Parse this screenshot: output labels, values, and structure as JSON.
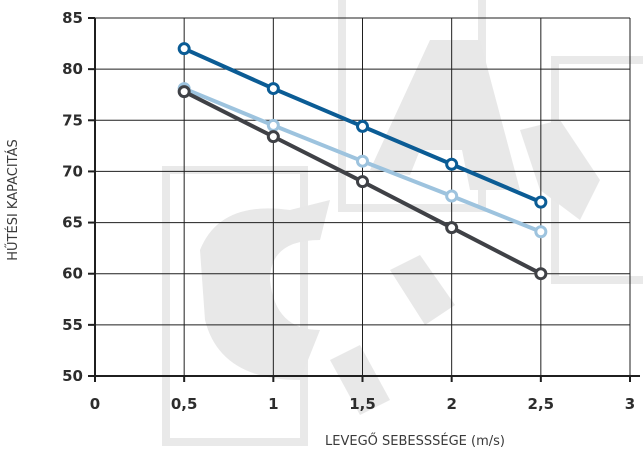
{
  "chart_data": {
    "type": "line",
    "xlabel": "LEVEGŐ SEBESSSÉGE (m/s)",
    "ylabel": "HŰTÉSI KAPACITÁS",
    "xlim": [
      0,
      3
    ],
    "ylim": [
      50,
      85
    ],
    "x_ticks": [
      "0",
      "0,5",
      "1",
      "1,5",
      "2",
      "2,5",
      "3"
    ],
    "y_ticks": [
      "50",
      "55",
      "60",
      "65",
      "70",
      "75",
      "80",
      "85"
    ],
    "grid": true,
    "legend": "none",
    "x": [
      0.5,
      1,
      1.5,
      2,
      2.5
    ],
    "series": [
      {
        "values": [
          82.0,
          78.1,
          74.4,
          70.7,
          67.0
        ],
        "color": "#0b5c95"
      },
      {
        "values": [
          78.1,
          74.5,
          71.0,
          67.6,
          64.1
        ],
        "color": "#9dc3de"
      },
      {
        "values": [
          77.8,
          73.4,
          69.0,
          64.5,
          60.0
        ],
        "color": "#3f4146"
      }
    ]
  }
}
